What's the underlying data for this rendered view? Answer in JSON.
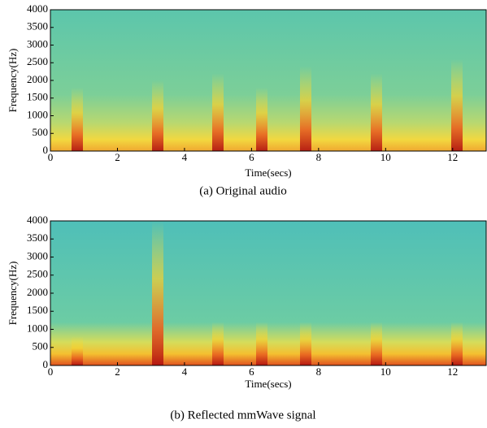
{
  "chart_data": [
    {
      "type": "spectrogram",
      "caption": "(a) Original audio",
      "xlabel": "Time(secs)",
      "ylabel": "Frequency(Hz)",
      "xlim": [
        0,
        13
      ],
      "xticks": [
        0,
        2,
        4,
        6,
        8,
        10,
        12
      ],
      "ylim": [
        0,
        4000
      ],
      "yticks": [
        0,
        500,
        1000,
        1500,
        2000,
        2500,
        3000,
        3500,
        4000
      ]
    },
    {
      "type": "spectrogram",
      "caption": "(b) Reflected mmWave signal",
      "xlabel": "Time(secs)",
      "ylabel": "Frequency(Hz)",
      "xlim": [
        0,
        13
      ],
      "xticks": [
        0,
        2,
        4,
        6,
        8,
        10,
        12
      ],
      "ylim": [
        0,
        4000
      ],
      "yticks": [
        0,
        500,
        1000,
        1500,
        2000,
        2500,
        3000,
        3500,
        4000
      ]
    }
  ]
}
